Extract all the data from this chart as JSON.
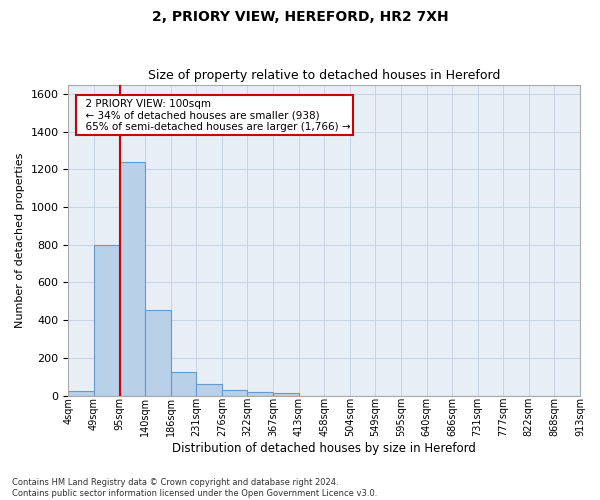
{
  "title": "2, PRIORY VIEW, HEREFORD, HR2 7XH",
  "subtitle": "Size of property relative to detached houses in Hereford",
  "xlabel": "Distribution of detached houses by size in Hereford",
  "ylabel": "Number of detached properties",
  "bar_values": [
    25,
    800,
    1240,
    455,
    125,
    60,
    28,
    18,
    15,
    0,
    0,
    0,
    0,
    0,
    0,
    0,
    0,
    0,
    0,
    0
  ],
  "bar_labels": [
    "4sqm",
    "49sqm",
    "95sqm",
    "140sqm",
    "186sqm",
    "231sqm",
    "276sqm",
    "322sqm",
    "367sqm",
    "413sqm",
    "458sqm",
    "504sqm",
    "549sqm",
    "595sqm",
    "640sqm",
    "686sqm",
    "731sqm",
    "777sqm",
    "822sqm",
    "868sqm",
    "913sqm"
  ],
  "bar_color": "#b8d0e8",
  "bar_edge_color": "#6699cc",
  "grid_color": "#c8d4e4",
  "bg_color": "#e8eef6",
  "annotation_text": "  2 PRIORY VIEW: 100sqm\n  ← 34% of detached houses are smaller (938)\n  65% of semi-detached houses are larger (1,766) →",
  "annotation_box_color": "#ffffff",
  "annotation_border_color": "#cc0000",
  "vline_color": "#cc0000",
  "ylim": [
    0,
    1650
  ],
  "yticks": [
    0,
    200,
    400,
    600,
    800,
    1000,
    1200,
    1400,
    1600
  ],
  "footnote": "Contains HM Land Registry data © Crown copyright and database right 2024.\nContains public sector information licensed under the Open Government Licence v3.0."
}
